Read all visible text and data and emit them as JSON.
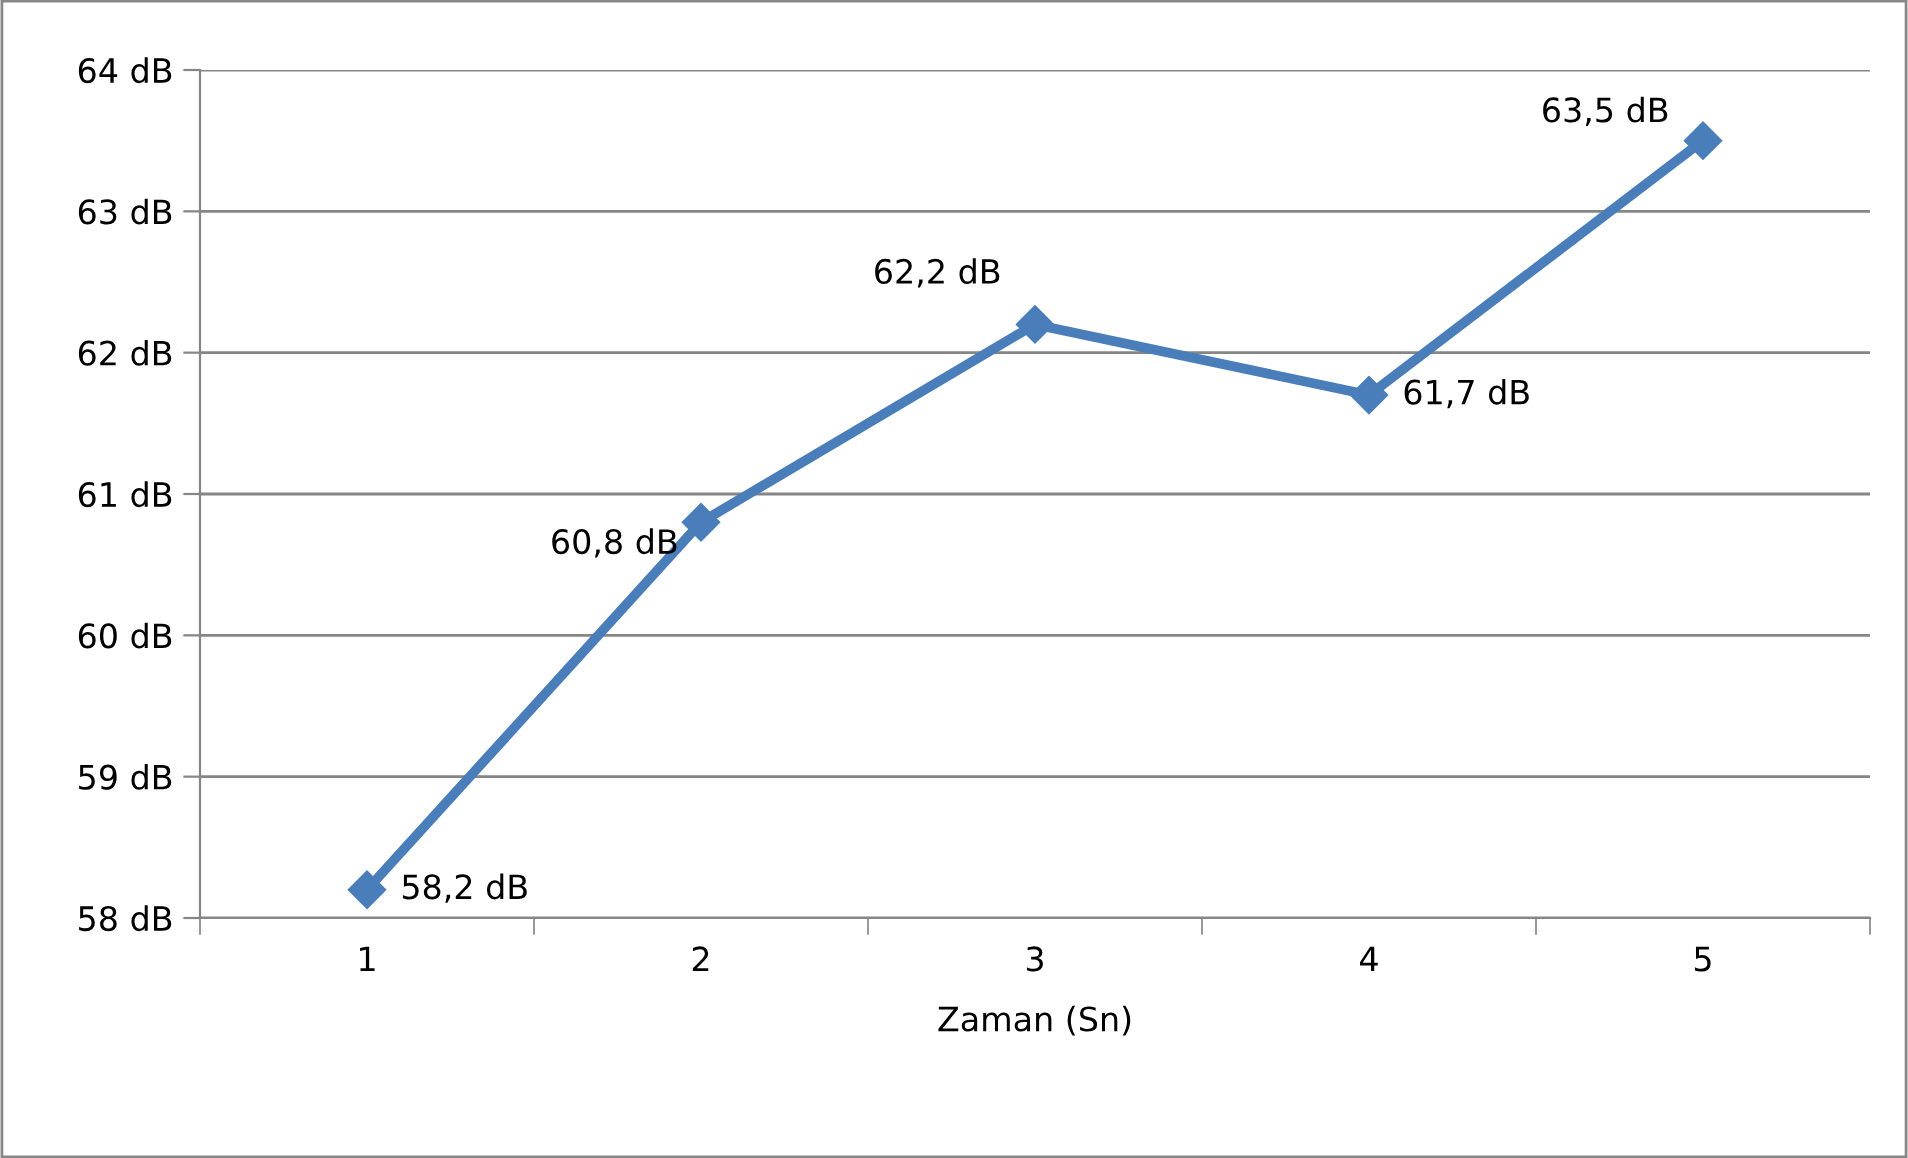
{
  "chart_data": {
    "type": "line",
    "xlabel": "Zaman (Sn)",
    "categories": [
      "1",
      "2",
      "3",
      "4",
      "5"
    ],
    "series": [
      {
        "color": "#4a7ebb",
        "values": [
          58.2,
          60.8,
          62.2,
          61.7,
          63.5
        ],
        "value_labels": [
          "58,2 dB",
          "60,8 dB",
          "62,2 dB",
          "61,7 dB",
          "63,5 dB"
        ]
      }
    ],
    "ylim": [
      58,
      64
    ],
    "yticks": [
      {
        "value": 58,
        "label": "58 dB"
      },
      {
        "value": 59,
        "label": "59 dB"
      },
      {
        "value": 60,
        "label": "60 dB"
      },
      {
        "value": 61,
        "label": "61 dB"
      },
      {
        "value": 62,
        "label": "62 dB"
      },
      {
        "value": 63,
        "label": "63 dB"
      },
      {
        "value": 64,
        "label": "64 dB"
      }
    ],
    "grid": "y",
    "marker": "diamond",
    "line_style": "solid",
    "legend": false
  }
}
